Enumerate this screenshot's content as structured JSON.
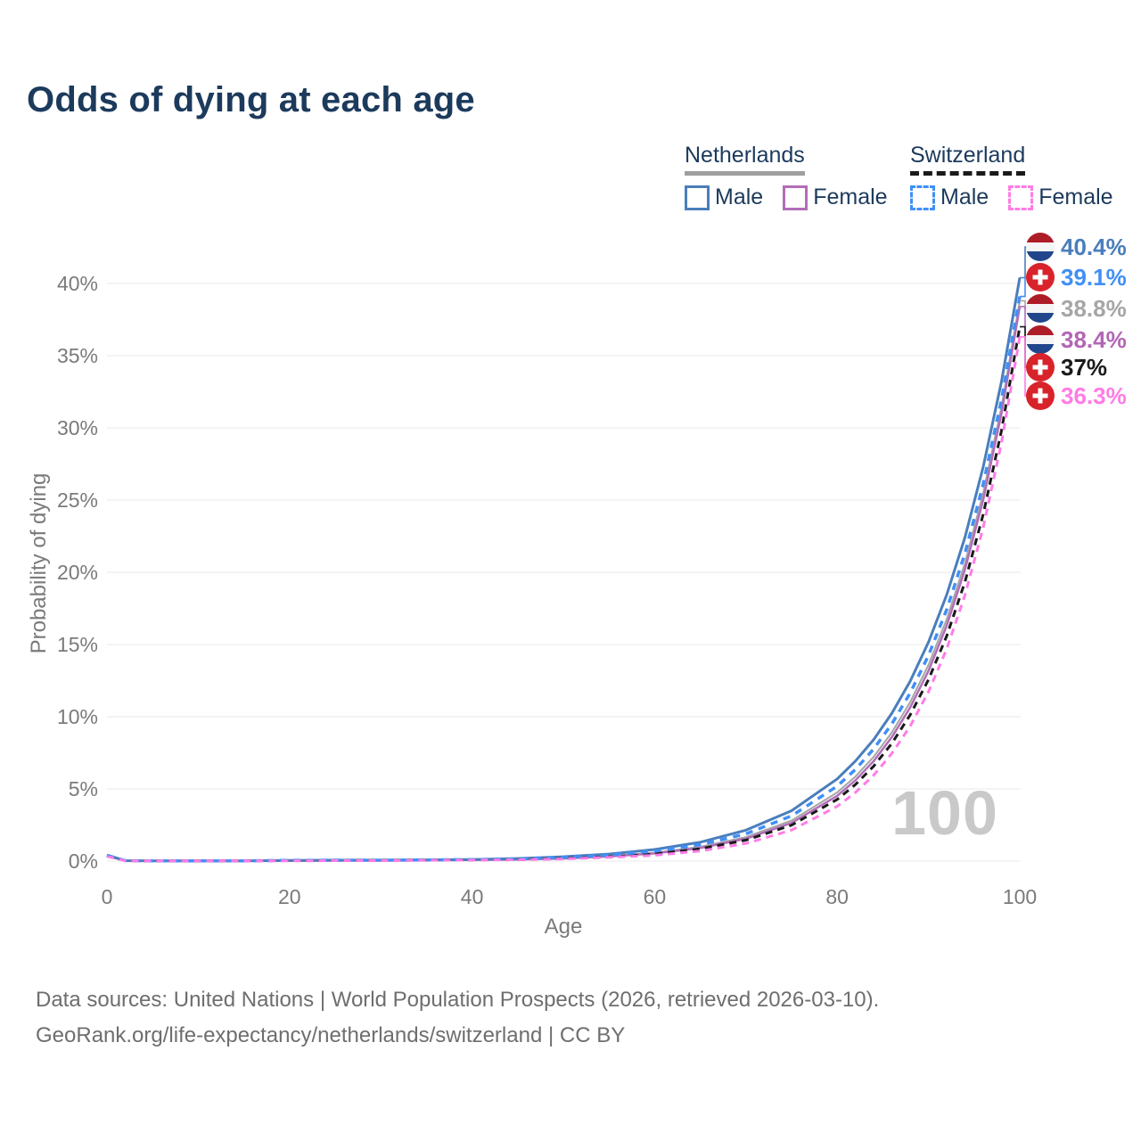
{
  "title": "Odds of dying at each age",
  "watermark": "100",
  "legend": {
    "groups": [
      {
        "label": "Netherlands",
        "line_style": "solid",
        "underline_color": "#9e9e9e",
        "items": [
          {
            "label": "Male",
            "color": "#4a7ebb"
          },
          {
            "label": "Female",
            "color": "#b26db8"
          }
        ]
      },
      {
        "label": "Switzerland",
        "line_style": "dashed",
        "underline_color": "#1a1a1a",
        "items": [
          {
            "label": "Male",
            "color": "#418ff7"
          },
          {
            "label": "Female",
            "color": "#ff7ce6"
          }
        ]
      }
    ]
  },
  "chart_data": {
    "type": "line",
    "title": "Odds of dying at each age",
    "xlabel": "Age",
    "ylabel": "Probability of dying",
    "xlim": [
      0,
      100
    ],
    "ylim_pct": [
      0,
      40
    ],
    "grid": "horizontal",
    "x_ticks": [
      0,
      20,
      40,
      60,
      80,
      100
    ],
    "y_ticks_pct": [
      0,
      5,
      10,
      15,
      20,
      25,
      30,
      35,
      40
    ],
    "y_tick_labels": [
      "0%",
      "5%",
      "10%",
      "15%",
      "20%",
      "25%",
      "30%",
      "35%",
      "40%"
    ],
    "ages": [
      0,
      2,
      5,
      10,
      15,
      20,
      25,
      30,
      35,
      40,
      45,
      50,
      55,
      60,
      65,
      70,
      75,
      80,
      82,
      84,
      86,
      88,
      90,
      92,
      94,
      96,
      98,
      100
    ],
    "series": [
      {
        "name": "Netherlands Male",
        "country": "nl",
        "sex": "male",
        "color": "#4a7ebb",
        "dash": null,
        "width": 3,
        "end_value": 40.4,
        "end_label": "40.4%",
        "label_color": "#4a7ebb",
        "values": [
          0.42,
          0.03,
          0.01,
          0.01,
          0.02,
          0.05,
          0.06,
          0.06,
          0.08,
          0.11,
          0.18,
          0.3,
          0.49,
          0.8,
          1.31,
          2.14,
          3.49,
          5.69,
          6.93,
          8.42,
          10.25,
          12.46,
          15.16,
          18.45,
          22.44,
          27.3,
          33.21,
          40.4
        ]
      },
      {
        "name": "Switzerland Male",
        "country": "ch",
        "sex": "male",
        "color": "#418ff7",
        "dash": "8 7",
        "width": 3.5,
        "end_value": 39.1,
        "end_label": "39.1%",
        "label_color": "#418ff7",
        "values": [
          0.4,
          0.03,
          0.01,
          0.01,
          0.02,
          0.05,
          0.06,
          0.06,
          0.08,
          0.1,
          0.15,
          0.25,
          0.42,
          0.69,
          1.14,
          1.89,
          3.13,
          5.19,
          6.35,
          7.77,
          9.51,
          11.64,
          14.24,
          17.43,
          21.33,
          26.11,
          31.95,
          39.1
        ]
      },
      {
        "name": "Netherlands Both sexes",
        "country": "nl",
        "sex": "both",
        "color": "#a6a6a6",
        "dash": null,
        "width": 2,
        "end_value": 38.8,
        "end_label": "38.8%",
        "label_color": "#a6a6a6",
        "values": [
          0.38,
          0.03,
          0.01,
          0.01,
          0.02,
          0.04,
          0.05,
          0.05,
          0.07,
          0.09,
          0.13,
          0.21,
          0.34,
          0.58,
          0.99,
          1.66,
          2.81,
          4.75,
          5.86,
          7.23,
          8.92,
          11.01,
          13.58,
          16.75,
          20.66,
          25.49,
          31.45,
          38.8
        ]
      },
      {
        "name": "Netherlands Female",
        "country": "nl",
        "sex": "female",
        "color": "#b26db8",
        "dash": null,
        "width": 2.5,
        "end_value": 38.4,
        "end_label": "38.4%",
        "label_color": "#b266b5",
        "values": [
          0.35,
          0.02,
          0.01,
          0.01,
          0.01,
          0.02,
          0.03,
          0.04,
          0.05,
          0.08,
          0.11,
          0.18,
          0.32,
          0.53,
          0.91,
          1.55,
          2.64,
          4.52,
          5.6,
          6.93,
          8.59,
          10.64,
          13.17,
          16.32,
          20.21,
          25.03,
          31.0,
          38.4
        ]
      },
      {
        "name": "Switzerland Both sexes",
        "country": "ch",
        "sex": "both",
        "color": "#1a1a1a",
        "dash": "8 6",
        "width": 3,
        "end_value": 37.0,
        "end_label": "37%",
        "label_color": "#1a1a1a",
        "values": [
          0.36,
          0.03,
          0.01,
          0.01,
          0.02,
          0.03,
          0.04,
          0.05,
          0.06,
          0.08,
          0.1,
          0.17,
          0.29,
          0.49,
          0.85,
          1.45,
          2.49,
          4.27,
          5.3,
          6.58,
          8.16,
          10.13,
          12.57,
          15.6,
          19.35,
          24.02,
          29.81,
          37.0
        ]
      },
      {
        "name": "Switzerland Female",
        "country": "ch",
        "sex": "female",
        "color": "#ff7ce6",
        "dash": "8 6",
        "width": 3,
        "end_value": 36.3,
        "end_label": "36.3%",
        "label_color": "#ff7ce6",
        "values": [
          0.33,
          0.02,
          0.01,
          0.01,
          0.01,
          0.02,
          0.03,
          0.03,
          0.05,
          0.07,
          0.09,
          0.15,
          0.26,
          0.4,
          0.7,
          1.22,
          2.15,
          3.79,
          4.75,
          5.95,
          7.46,
          9.35,
          11.73,
          14.7,
          18.43,
          23.1,
          28.97,
          36.3
        ]
      }
    ],
    "legend_position": "top-right"
  },
  "footer": {
    "line1": "Data sources: United Nations | World Population Prospects (2026, retrieved 2026-03-10).",
    "line2": "GeoRank.org/life-expectancy/netherlands/switzerland | CC BY"
  }
}
